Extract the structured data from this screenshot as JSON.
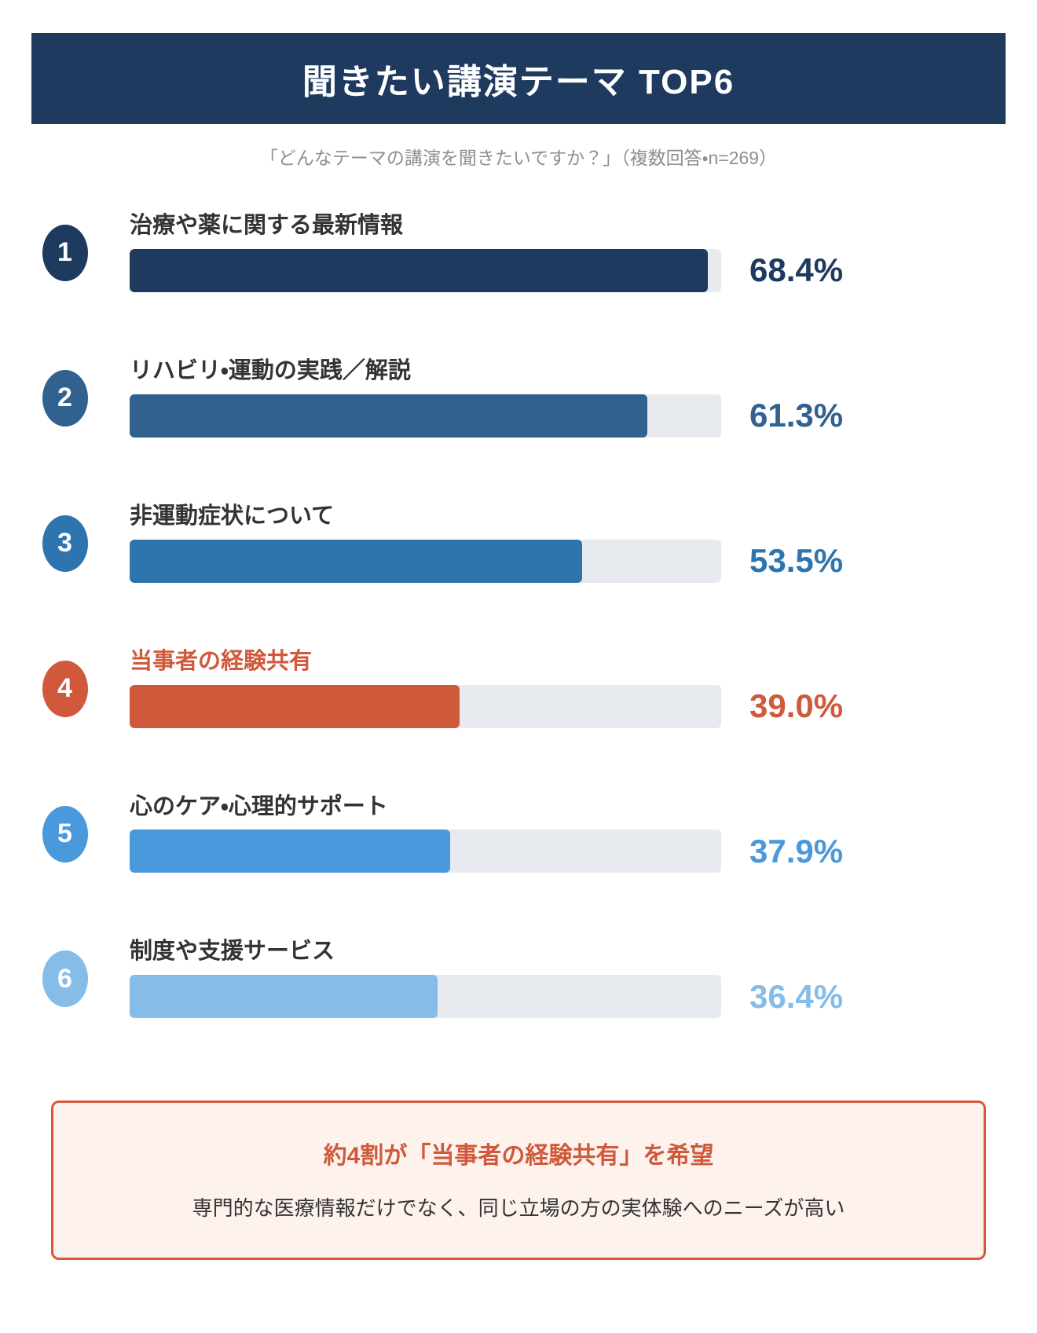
{
  "header": {
    "title": "聞きたい講演テーマ TOP6",
    "bg_color": "#1e3a5f",
    "text_color": "#ffffff"
  },
  "subtitle": "「どんなテーマの講演を聞きたいですか？」（複数回答・n=269）",
  "chart_data": {
    "type": "bar",
    "orientation": "horizontal",
    "title": "聞きたい講演テーマ TOP6",
    "subtitle": "「どんなテーマの講演を聞きたいですか？」（複数回答・n=269）",
    "categories": [
      "治療や薬に関する最新情報",
      "リハビリ・運動の実践／解説",
      "非運動症状について",
      "当事者の経験共有",
      "心のケア・心理的サポート",
      "制度や支援サービス"
    ],
    "values": [
      68.4,
      61.3,
      53.5,
      39.0,
      37.9,
      36.4
    ],
    "value_labels": [
      "68.4%",
      "61.3%",
      "53.5%",
      "39.0%",
      "37.9%",
      "36.4%"
    ],
    "xlim": [
      0,
      70
    ],
    "grid": false,
    "legend": false,
    "track_color": "#e7eaef",
    "bar_colors": [
      "#1e3a5f",
      "#31618f",
      "#2e74ae",
      "#d0593c",
      "#4a99dc",
      "#85bce8"
    ],
    "highlight_index": 3
  },
  "rows": [
    {
      "rank": "1",
      "label": "治療や薬に関する最新情報",
      "value": 68.4,
      "value_label": "68.4%",
      "color": "#1e3a5f",
      "label_color": "#333333",
      "highlighted": false
    },
    {
      "rank": "2",
      "label": "リハビリ・運動の実践／解説",
      "value": 61.3,
      "value_label": "61.3%",
      "color": "#31618f",
      "label_color": "#333333",
      "highlighted": false
    },
    {
      "rank": "3",
      "label": "非運動症状について",
      "value": 53.5,
      "value_label": "53.5%",
      "color": "#2e74ae",
      "label_color": "#333333",
      "highlighted": false
    },
    {
      "rank": "4",
      "label": "当事者の経験共有",
      "value": 39.0,
      "value_label": "39.0%",
      "color": "#d0593c",
      "label_color": "#d0593c",
      "highlighted": true
    },
    {
      "rank": "5",
      "label": "心のケア・心理的サポート",
      "value": 37.9,
      "value_label": "37.9%",
      "color": "#4a99dc",
      "label_color": "#333333",
      "highlighted": false
    },
    {
      "rank": "6",
      "label": "制度や支援サービス",
      "value": 36.4,
      "value_label": "36.4%",
      "color": "#85bce8",
      "label_color": "#333333",
      "highlighted": false
    }
  ],
  "callout": {
    "title": "約4割が「当事者の経験共有」を希望",
    "body": "専門的な医療情報だけでなく、同じ立場の方の実体験へのニーズが高い",
    "accent_color": "#d0593c",
    "bg_color": "#fdf2ec",
    "border_color": "#d8583c"
  }
}
